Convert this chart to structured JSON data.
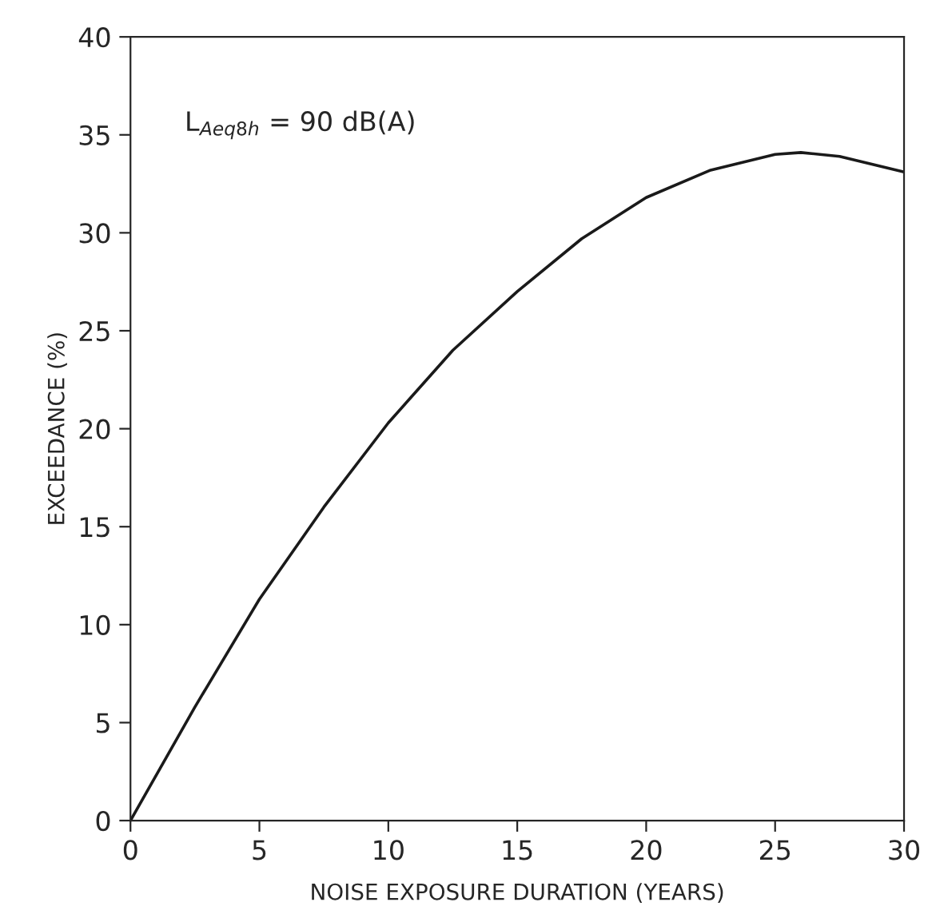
{
  "chart_data": {
    "type": "line",
    "xlabel": "NOISE EXPOSURE DURATION (YEARS)",
    "ylabel": "EXCEEDANCE (%)",
    "annotations": [
      "L$_{Aeq8h}$ = 90 dB(A)"
    ],
    "series": [
      {
        "color": "#1a1a1a",
        "x": [
          0,
          2.5,
          5,
          7.5,
          10,
          12.5,
          15,
          17.5,
          20,
          22.5,
          25,
          26,
          27.5,
          30
        ],
        "values": [
          0,
          5.8,
          11.3,
          16.0,
          20.3,
          24.0,
          27.0,
          29.7,
          31.8,
          33.2,
          34.0,
          34.1,
          33.9,
          33.1
        ]
      }
    ],
    "xlim": [
      0,
      30
    ],
    "xticks": [
      0,
      5,
      10,
      15,
      20,
      25,
      30
    ],
    "ylim": [
      0,
      40
    ],
    "yticks": [
      0,
      5,
      10,
      15,
      20,
      25,
      30,
      35,
      40
    ],
    "grid": false,
    "legend": false,
    "marker": "none",
    "line_style": "solid"
  }
}
